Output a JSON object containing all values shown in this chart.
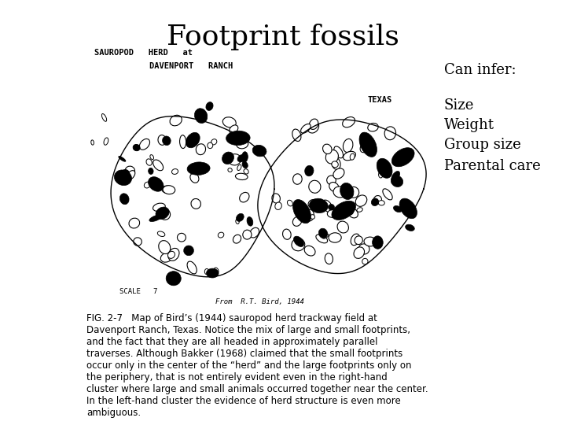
{
  "title": "Footprint fossils",
  "title_fontsize": 26,
  "title_font": "serif",
  "can_infer_label": "Can infer:",
  "can_infer_fontsize": 13,
  "infer_items": [
    "Size",
    "Weight",
    "Group size",
    "Parental care"
  ],
  "infer_fontsize": 13,
  "background_color": "#ffffff",
  "text_color": "#000000",
  "sauropod_line1": "SAUROPOD   HERD   at",
  "sauropod_line2": "DAVENPORT   RANCH",
  "texas_label": "TEXAS",
  "scale_label": "SCALE   7",
  "from_label": "From  R.T. Bird, 1944",
  "caption": "FIG. 2-7   Map of Bird’s (1944) sauropod herd trackway field at Davenport Ranch, Texas. Notice the mix of large and small footprints, and the fact that they are all headed in approximately parallel traverses. Although Bakker (1968) claimed that the small footprints occur only in the center of the “herd” and the large footprints only on the periphery, that is not entirely evident even in the right-hand cluster where large and small animals occurred together near the center. In the left-hand cluster the evidence of herd structure is even more ambiguous.",
  "caption_fontsize": 8.5
}
